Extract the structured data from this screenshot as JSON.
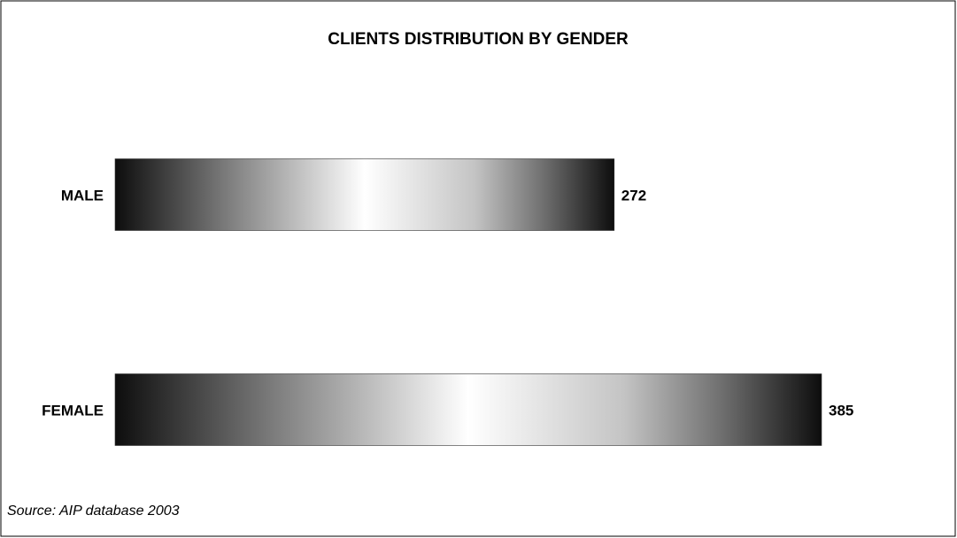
{
  "chart_data": {
    "type": "hbar",
    "title": "CLIENTS DISTRIBUTION BY GENDER",
    "categories": [
      "MALE",
      "FEMALE"
    ],
    "values": [
      272,
      385
    ],
    "source": "Source: AIP database 2003"
  }
}
